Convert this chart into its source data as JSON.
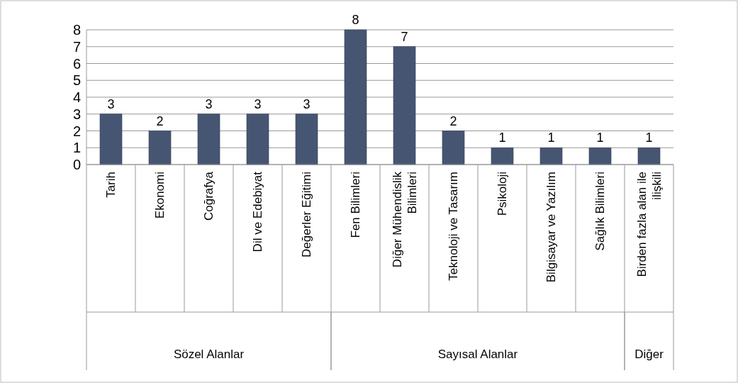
{
  "chart_data": {
    "type": "bar",
    "categories": [
      "Tarih",
      "Ekonomi",
      "Coğrafya",
      "Dil ve Edebiyat",
      "Değerler Eğitimi",
      "Fen Bilimleri",
      "Diğer Mühendislik Bilimleri",
      "Teknoloji ve Tasarım",
      "Psikoloji",
      "Bilgisayar ve Yazılım",
      "Sağlık Bilimleri",
      "Birden fazla alan ile ilişkili"
    ],
    "values": [
      3,
      2,
      3,
      3,
      3,
      8,
      7,
      2,
      1,
      1,
      1,
      1
    ],
    "color": "#465672",
    "ylim": [
      0,
      8
    ],
    "yticks": [
      0,
      1,
      2,
      3,
      4,
      5,
      6,
      7,
      8
    ],
    "grid": "y",
    "data_labels": true,
    "annotations": [
      "Sözel Alanlar",
      "Sayısal Alanlar",
      "Diğer"
    ]
  }
}
